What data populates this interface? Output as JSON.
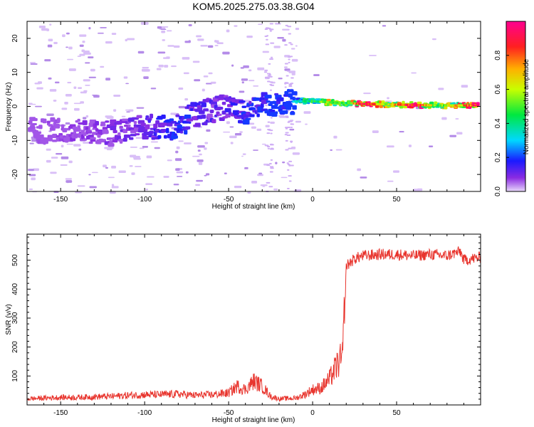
{
  "figure": {
    "title": "KOM5.2025.275.03.38.G04"
  },
  "chart_data": [
    {
      "type": "heatmap",
      "title": "KOM5.2025.275.03.38.G04",
      "xlabel": "Height of straight line (km)",
      "ylabel": "Frequency (Hz)",
      "xlim": [
        -170,
        100
      ],
      "ylim": [
        -25,
        25
      ],
      "xticks": [
        -150,
        -100,
        -50,
        0,
        50
      ],
      "yticks": [
        -20,
        -10,
        0,
        10,
        20
      ],
      "colorbar": {
        "label": "Normalized spectral amplitude",
        "range": [
          0,
          1
        ],
        "ticks": [
          "0.0",
          "0.2",
          "0.4",
          "0.6",
          "0.8"
        ],
        "colormap": "purple-blue-cyan-green-yellow-red-magenta"
      },
      "ridge": {
        "description_points": [
          {
            "x": -165,
            "y": -7,
            "amp": 0.05
          },
          {
            "x": -120,
            "y": -8,
            "amp": 0.08
          },
          {
            "x": -100,
            "y": -6,
            "amp": 0.1
          },
          {
            "x": -82,
            "y": -6,
            "amp": 0.2
          },
          {
            "x": -68,
            "y": -2,
            "amp": 0.12
          },
          {
            "x": -50,
            "y": 0,
            "amp": 0.12
          },
          {
            "x": -40,
            "y": -1.5,
            "amp": 0.18
          },
          {
            "x": -30,
            "y": 0.5,
            "amp": 0.2
          },
          {
            "x": -10,
            "y": 1.5,
            "amp": 0.3
          },
          {
            "x": 0,
            "y": 1.5,
            "amp": 0.45
          },
          {
            "x": 10,
            "y": 1.2,
            "amp": 0.6
          },
          {
            "x": 20,
            "y": 1,
            "amp": 0.45
          },
          {
            "x": 30,
            "y": 0.7,
            "amp": 0.95
          },
          {
            "x": 45,
            "y": 0.6,
            "amp": 0.6
          },
          {
            "x": 60,
            "y": 0.4,
            "amp": 0.95
          },
          {
            "x": 75,
            "y": 0.3,
            "amp": 0.5
          },
          {
            "x": 98,
            "y": 0.3,
            "amp": 0.9
          }
        ]
      }
    },
    {
      "type": "line",
      "xlabel": "Height of straight line (km)",
      "ylabel": "SNR (v/v)",
      "xlim": [
        -170,
        100
      ],
      "ylim": [
        0,
        590
      ],
      "xticks": [
        -150,
        -100,
        -50,
        0,
        50
      ],
      "yticks": [
        100,
        200,
        300,
        400,
        500
      ],
      "color": "#e8352e",
      "series": [
        {
          "x": [
            -170,
            -160,
            -150,
            -140,
            -130,
            -120,
            -110,
            -100,
            -90,
            -80,
            -70,
            -60,
            -50,
            -45,
            -40,
            -35,
            -30,
            -25,
            -20,
            -10,
            -5,
            0,
            5,
            10,
            15,
            18,
            19,
            20,
            22,
            25,
            30,
            40,
            50,
            60,
            70,
            80,
            85,
            88,
            90,
            95,
            100
          ],
          "values": [
            18,
            20,
            22,
            22,
            24,
            25,
            28,
            30,
            30,
            32,
            28,
            30,
            35,
            55,
            45,
            70,
            55,
            25,
            18,
            20,
            30,
            45,
            50,
            75,
            120,
            140,
            300,
            480,
            490,
            505,
            515,
            520,
            520,
            515,
            520,
            515,
            525,
            530,
            500,
            505,
            510
          ]
        }
      ]
    }
  ]
}
